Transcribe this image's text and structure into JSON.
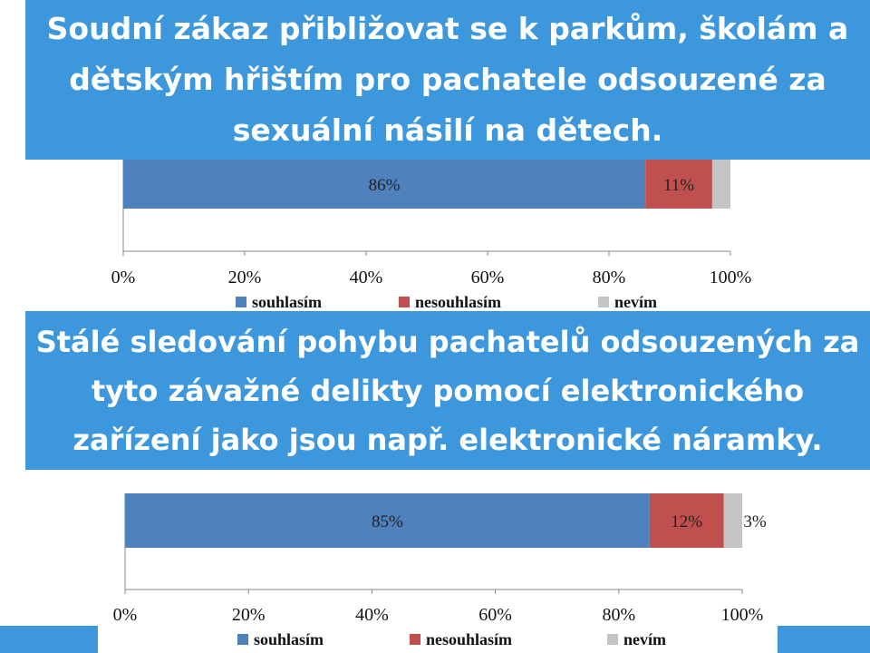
{
  "slide": {
    "title1": "Soudní zákaz přibližovat se k parkům, školám a dětským hřištím pro pachatele odsouzené za sexuální násilí na dětech.",
    "title2": "Stálé sledování pohybu pachatelů odsouzených za tyto závažné delikty pomocí elektronického zařízení jako jsou např. elektronické náramky.",
    "banner_color": "#3c97dc"
  },
  "chart_data": [
    {
      "type": "bar",
      "orientation": "horizontal",
      "stacked": true,
      "percent": true,
      "xlim": [
        0,
        100
      ],
      "ticks": [
        "0%",
        "20%",
        "40%",
        "60%",
        "80%",
        "100%"
      ],
      "series": [
        {
          "name": "souhlasím",
          "values": [
            86
          ],
          "label": "86%",
          "color": "#4f81bd"
        },
        {
          "name": "nesouhlasím",
          "values": [
            11
          ],
          "label": "11%",
          "color": "#c0504d"
        },
        {
          "name": "nevím",
          "values": [
            3
          ],
          "label": "",
          "color": "#c4c4c4"
        }
      ],
      "legend": [
        "souhlasím",
        "nesouhlasím",
        "nevím"
      ],
      "legend_position": "bottom"
    },
    {
      "type": "bar",
      "orientation": "horizontal",
      "stacked": true,
      "percent": true,
      "xlim": [
        0,
        100
      ],
      "ticks": [
        "0%",
        "20%",
        "40%",
        "60%",
        "80%",
        "100%"
      ],
      "series": [
        {
          "name": "souhlasím",
          "values": [
            85
          ],
          "label": "85%",
          "color": "#4f81bd"
        },
        {
          "name": "nesouhlasím",
          "values": [
            12
          ],
          "label": "12%",
          "color": "#c0504d"
        },
        {
          "name": "nevím",
          "values": [
            3
          ],
          "label": "3%",
          "color": "#c4c4c4"
        }
      ],
      "legend": [
        "souhlasím",
        "nesouhlasím",
        "nevím"
      ],
      "legend_position": "bottom"
    }
  ]
}
